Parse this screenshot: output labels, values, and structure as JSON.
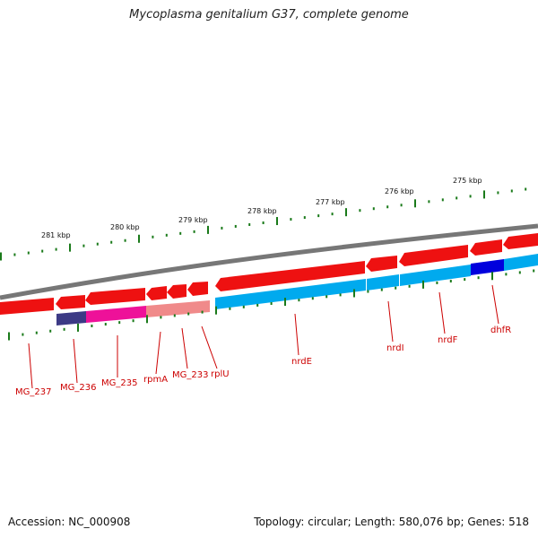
{
  "title": "Mycoplasma genitalium G37, complete genome",
  "footer": {
    "accession": "Accession: NC_000908",
    "summary": "Topology: circular; Length: 580,076 bp; Genes: 518"
  },
  "scale_labels": [
    "281 kbp",
    "280 kbp",
    "279 kbp",
    "278 kbp",
    "277 kbp",
    "276 kbp",
    "275 kbp"
  ],
  "gene_labels": [
    "MG_237",
    "MG_236",
    "MG_235",
    "rpmA",
    "MG_233",
    "rplU",
    "nrdE",
    "nrdI",
    "nrdF",
    "dhfR"
  ],
  "colors": {
    "cds_forward": "#ee1111",
    "feature_blue": "#00aaee",
    "highlight_navy": "#0000dd",
    "feature_magenta": "#ee1199",
    "feature_pink": "#f08a8a",
    "feature_purple": "#3c3a85",
    "backbone": "#777777",
    "tick_green": "#1a7a1a",
    "label_red": "#cc0000"
  }
}
